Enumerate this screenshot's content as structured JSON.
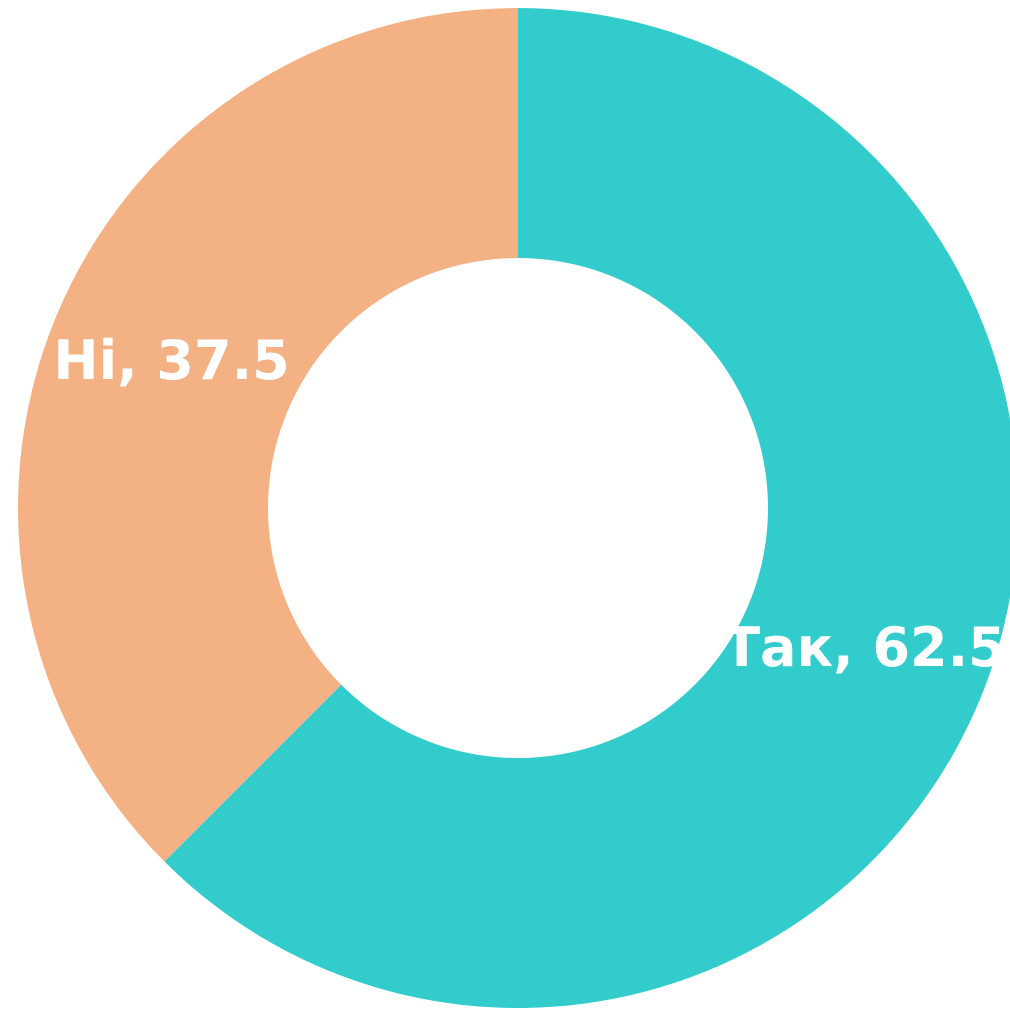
{
  "chart_data": {
    "type": "donut",
    "categories": [
      "Так",
      "Ні"
    ],
    "values": [
      62.5,
      37.5
    ],
    "value_labels": [
      "Так, 62.5",
      "Ні, 37.5"
    ],
    "colors": [
      "#33CCCC",
      "#F4B183"
    ]
  }
}
